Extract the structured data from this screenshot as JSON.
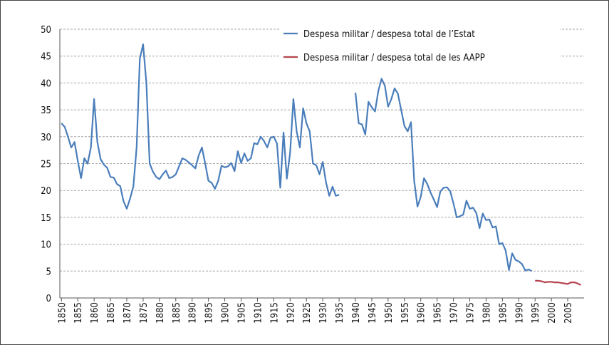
{
  "chart_data": {
    "type": "line",
    "series": [
      {
        "name": "Despesa militar / despesa total de l’Estat",
        "color": "#4a7ebb",
        "x": [
          1850,
          1851,
          1852,
          1853,
          1854,
          1855,
          1856,
          1857,
          1858,
          1859,
          1860,
          1861,
          1862,
          1863,
          1864,
          1865,
          1866,
          1867,
          1868,
          1869,
          1870,
          1871,
          1872,
          1873,
          1874,
          1875,
          1876,
          1877,
          1878,
          1879,
          1880,
          1881,
          1882,
          1883,
          1884,
          1885,
          1886,
          1887,
          1888,
          1889,
          1890,
          1891,
          1892,
          1893,
          1894,
          1895,
          1896,
          1897,
          1898,
          1899,
          1900,
          1901,
          1902,
          1903,
          1904,
          1905,
          1906,
          1907,
          1908,
          1909,
          1910,
          1911,
          1912,
          1913,
          1914,
          1915,
          1916,
          1917,
          1918,
          1919,
          1920,
          1921,
          1922,
          1923,
          1924,
          1925,
          1926,
          1927,
          1928,
          1929,
          1930,
          1931,
          1932,
          1933,
          1934,
          1935,
          1936,
          1937,
          1938,
          1939,
          1940,
          1941,
          1942,
          1943,
          1944,
          1945,
          1946,
          1947,
          1948,
          1949,
          1950,
          1951,
          1952,
          1953,
          1954,
          1955,
          1956,
          1957,
          1958,
          1959,
          1960,
          1961,
          1962,
          1963,
          1964,
          1965,
          1966,
          1967,
          1968,
          1969,
          1970,
          1971,
          1972,
          1973,
          1974,
          1975,
          1976,
          1977,
          1978,
          1979,
          1980,
          1981,
          1982,
          1983,
          1984,
          1985,
          1986,
          1987,
          1988,
          1989,
          1990,
          1991,
          1992,
          1993,
          1994
        ],
        "values": [
          32.5,
          31.8,
          30,
          28,
          29,
          25.5,
          22.3,
          26,
          25,
          28,
          37,
          29,
          25.8,
          24.8,
          24.2,
          22.5,
          22.4,
          21.2,
          20.8,
          18,
          16.6,
          18.5,
          20.7,
          28,
          44.5,
          47.2,
          40,
          25,
          23.5,
          22.5,
          22.1,
          23,
          23.7,
          22.3,
          22.5,
          23,
          24.5,
          26,
          25.7,
          25.2,
          24.7,
          24.1,
          26.5,
          28,
          25,
          21.8,
          21.4,
          20.3,
          21.8,
          24.6,
          24.3,
          24.5,
          25.1,
          23.6,
          27.3,
          25.1,
          26.9,
          25.5,
          26,
          28.8,
          28.6,
          30,
          29.2,
          28,
          29.8,
          30,
          28.7,
          20.5,
          30.8,
          22.2,
          27,
          37,
          31,
          28,
          35.3,
          32.5,
          31,
          25,
          24.7,
          23,
          25.3,
          21.5,
          19,
          20.7,
          19,
          19.2,
          null,
          null,
          null,
          null,
          38.2,
          32.5,
          32.3,
          30.4,
          36.5,
          35.5,
          34.7,
          38.5,
          40.8,
          39.5,
          35.6,
          37,
          39,
          38,
          35,
          32,
          31,
          32.7,
          21.8,
          17,
          18.8,
          22.3,
          21.2,
          19.6,
          18.3,
          16.9,
          19.8,
          20.5,
          20.6,
          19.9,
          17.6,
          15,
          15.2,
          15.5,
          18.1,
          16.6,
          16.8,
          15.8,
          13,
          15.7,
          14.5,
          14.6,
          13.1,
          13.3,
          10,
          10.2,
          8.8,
          5.2,
          8.3,
          7.1,
          6.8,
          6.3,
          5.1,
          5.3,
          5
        ]
      },
      {
        "name": "Despesa militar / despesa total de les AAPP",
        "color": "#b5444e",
        "x": [
          1995,
          1996,
          1997,
          1998,
          1999,
          2000,
          2001,
          2002,
          2003,
          2004,
          2005,
          2006,
          2007,
          2008,
          2009
        ],
        "values": [
          3.2,
          3.2,
          3.1,
          2.9,
          3.0,
          3.0,
          2.9,
          2.9,
          2.8,
          2.7,
          2.6,
          2.9,
          2.9,
          2.7,
          2.4
        ]
      }
    ],
    "xlim": [
      1849.5,
      2010
    ],
    "xticks": [
      1850,
      1855,
      1860,
      1865,
      1870,
      1875,
      1880,
      1885,
      1890,
      1895,
      1900,
      1905,
      1910,
      1915,
      1920,
      1925,
      1930,
      1935,
      1940,
      1945,
      1950,
      1955,
      1960,
      1965,
      1970,
      1975,
      1980,
      1985,
      1990,
      1995,
      2000,
      2005
    ],
    "ylim": [
      0,
      50
    ],
    "yticks": [
      0,
      5,
      10,
      15,
      20,
      25,
      30,
      35,
      40,
      45,
      50
    ],
    "grid": true,
    "legend": "top-right"
  }
}
